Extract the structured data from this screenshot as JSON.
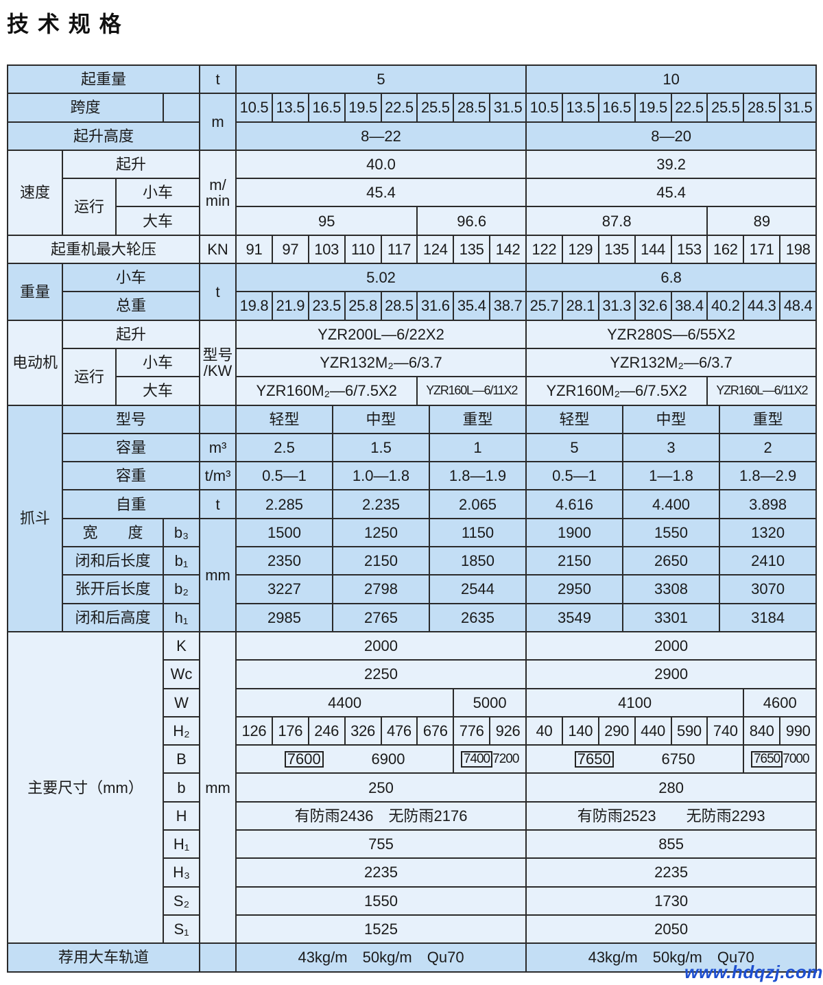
{
  "title": "技 术 规 格",
  "watermark": "www.hdqzj.com",
  "colors": {
    "header_blue": "#c3def5",
    "light_blue": "#e7f1fb",
    "watermark": "#1e4fd0"
  },
  "capacity": {
    "label": "起重量",
    "unit": "t",
    "values": [
      "5",
      "10"
    ]
  },
  "span": {
    "label": "跨度",
    "unit": "m",
    "values": [
      "10.5",
      "13.5",
      "16.5",
      "19.5",
      "22.5",
      "25.5",
      "28.5",
      "31.5",
      "10.5",
      "13.5",
      "16.5",
      "19.5",
      "22.5",
      "25.5",
      "28.5",
      "31.5"
    ]
  },
  "lift_height": {
    "label": "起升高度",
    "values": [
      "8—22",
      "8—20"
    ]
  },
  "speed": {
    "label": "速度",
    "unit": "m/\nmin",
    "hoist": {
      "label": "起升",
      "values": [
        "40.0",
        "39.2"
      ]
    },
    "travel_label": "运行",
    "trolley": {
      "label": "小车",
      "values": [
        "45.4",
        "45.4"
      ]
    },
    "crane": {
      "label": "大车",
      "values": [
        "95",
        "96.6",
        "87.8",
        "89"
      ]
    }
  },
  "wheel_load": {
    "label": "起重机最大轮压",
    "unit": "KN",
    "values": [
      "91",
      "97",
      "103",
      "110",
      "117",
      "124",
      "135",
      "142",
      "122",
      "129",
      "135",
      "144",
      "153",
      "162",
      "171",
      "198"
    ]
  },
  "weight": {
    "label": "重量",
    "unit": "t",
    "trolley": {
      "label": "小车",
      "values": [
        "5.02",
        "6.8"
      ]
    },
    "total": {
      "label": "总重",
      "values": [
        "19.8",
        "21.9",
        "23.5",
        "25.8",
        "28.5",
        "31.6",
        "35.4",
        "38.7",
        "25.7",
        "28.1",
        "31.3",
        "32.6",
        "38.4",
        "40.2",
        "44.3",
        "48.4"
      ]
    }
  },
  "motor": {
    "label": "电动机",
    "unit": "型号\n/KW",
    "hoist": {
      "label": "起升",
      "values": [
        "YZR200L—6/22X2",
        "YZR280S—6/55X2"
      ]
    },
    "travel_label": "运行",
    "trolley": {
      "label": "小车",
      "values": [
        "YZR132M₂—6/3.7",
        "YZR132M₂—6/3.7"
      ]
    },
    "crane": {
      "label": "大车",
      "values": [
        "YZR160M₂—6/7.5X2",
        "YZR160L—6/11X2",
        "YZR160M₂—6/7.5X2",
        "YZR160L—6/11X2"
      ]
    }
  },
  "grab": {
    "label": "抓斗",
    "type": {
      "label": "型号",
      "values": [
        "轻型",
        "中型",
        "重型",
        "轻型",
        "中型",
        "重型"
      ]
    },
    "volume": {
      "label": "容量",
      "unit": "m³",
      "values": [
        "2.5",
        "1.5",
        "1",
        "5",
        "3",
        "2"
      ]
    },
    "density": {
      "label": "容重",
      "unit": "t/m³",
      "values": [
        "0.5—1",
        "1.0—1.8",
        "1.8—1.9",
        "0.5—1",
        "1—1.8",
        "1.8—2.9"
      ]
    },
    "self_weight": {
      "label": "自重",
      "unit": "t",
      "values": [
        "2.285",
        "2.235",
        "2.065",
        "4.616",
        "4.400",
        "3.898"
      ]
    },
    "mm_unit": "mm",
    "width": {
      "label": "宽　　度",
      "symbol": "b₃",
      "values": [
        "1500",
        "1250",
        "1150",
        "1900",
        "1550",
        "1320"
      ]
    },
    "closed_length": {
      "label": "闭和后长度",
      "symbol": "b₁",
      "values": [
        "2350",
        "2150",
        "1850",
        "2150",
        "2650",
        "2410"
      ]
    },
    "open_length": {
      "label": "张开后长度",
      "symbol": "b₂",
      "values": [
        "3227",
        "2798",
        "2544",
        "2950",
        "3308",
        "3070"
      ]
    },
    "closed_height": {
      "label": "闭和后高度",
      "symbol": "h₁",
      "values": [
        "2985",
        "2765",
        "2635",
        "3549",
        "3301",
        "3184"
      ]
    }
  },
  "dims": {
    "label": "主要尺寸（mm）",
    "unit": "mm",
    "K": {
      "symbol": "K",
      "values": [
        "2000",
        "2000"
      ]
    },
    "Wc": {
      "symbol": "Wc",
      "values": [
        "2250",
        "2900"
      ]
    },
    "W": {
      "symbol": "W",
      "values": [
        "4400",
        "5000",
        "4100",
        "4600"
      ]
    },
    "H2": {
      "symbol": "H₂",
      "values": [
        "126",
        "176",
        "246",
        "326",
        "476",
        "676",
        "776",
        "926",
        "40",
        "140",
        "290",
        "440",
        "590",
        "740",
        "840",
        "990"
      ]
    },
    "B": {
      "symbol": "B",
      "values": [
        {
          "boxed": "7600",
          "plain": "6900"
        },
        {
          "boxed": "7400",
          "plain": "7200"
        },
        {
          "boxed": "7650",
          "plain": "6750"
        },
        {
          "boxed": "7650",
          "plain": "7000"
        }
      ]
    },
    "b": {
      "symbol": "b",
      "values": [
        "250",
        "280"
      ]
    },
    "H": {
      "symbol": "H",
      "values": [
        "有防雨2436　无防雨2176",
        "有防雨2523　　无防雨2293"
      ]
    },
    "H1": {
      "symbol": "H₁",
      "values": [
        "755",
        "855"
      ]
    },
    "H3": {
      "symbol": "H₃",
      "values": [
        "2235",
        "2235"
      ]
    },
    "S2": {
      "symbol": "S₂",
      "values": [
        "1550",
        "1730"
      ]
    },
    "S1": {
      "symbol": "S₁",
      "values": [
        "1525",
        "2050"
      ]
    }
  },
  "rail": {
    "label": "荐用大车轨道",
    "values": [
      "43kg/m　50kg/m　Qu70",
      "43kg/m　50kg/m　Qu70"
    ]
  }
}
